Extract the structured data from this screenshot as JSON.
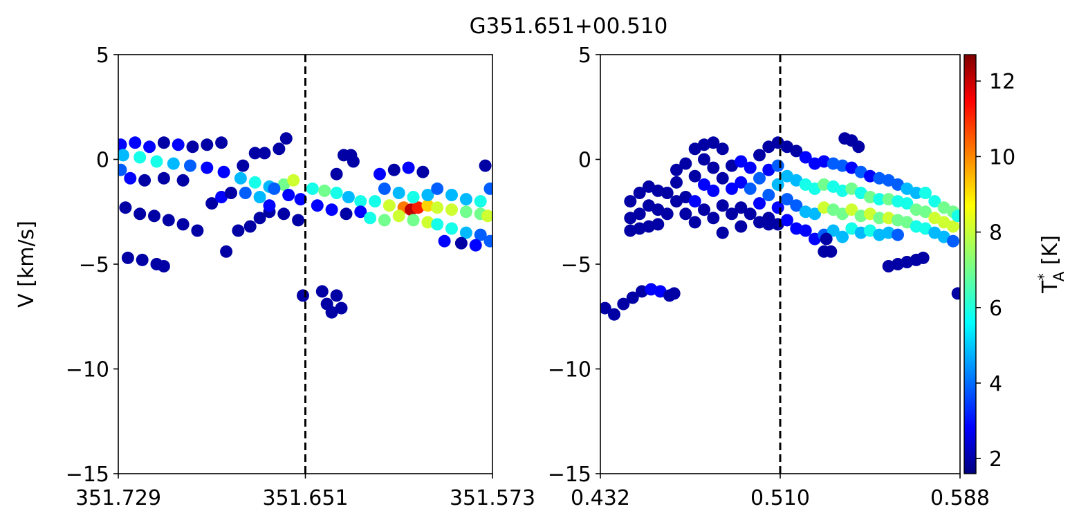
{
  "title": "G351.651+00.510",
  "colorbar": {
    "label_main": "T",
    "label_sup": "*",
    "label_sub": "A",
    "label_unit": " [K]",
    "range": [
      1.6,
      12.7
    ],
    "ticks": [
      2,
      4,
      6,
      8,
      10,
      12
    ],
    "tick_labels": [
      "2",
      "4",
      "6",
      "8",
      "10",
      "12"
    ],
    "colormap": "jet"
  },
  "chart_data": [
    {
      "type": "scatter",
      "panel": "left",
      "xlabel": "",
      "ylabel": "V [km/s]",
      "xlim": [
        351.729,
        351.573
      ],
      "ylim": [
        -15,
        5
      ],
      "xticks": [
        351.729,
        351.651,
        351.573
      ],
      "xtick_labels": [
        "351.729",
        "351.651",
        "351.573"
      ],
      "yticks": [
        5,
        0,
        -5,
        -10,
        -15
      ],
      "ytick_labels": [
        "5",
        "0",
        "−5",
        "−10",
        "−15"
      ],
      "vline": 351.651,
      "vline_style": "dashed",
      "color_scale": "T_A* [K]",
      "points": [
        [
          351.728,
          0.7,
          3
        ],
        [
          351.722,
          0.8,
          3
        ],
        [
          351.716,
          0.6,
          3
        ],
        [
          351.71,
          0.8,
          2
        ],
        [
          351.704,
          0.7,
          3
        ],
        [
          351.698,
          0.6,
          2
        ],
        [
          351.692,
          0.7,
          2
        ],
        [
          351.686,
          0.8,
          2
        ],
        [
          351.727,
          0.2,
          5
        ],
        [
          351.72,
          0.1,
          6
        ],
        [
          351.713,
          -0.1,
          6
        ],
        [
          351.706,
          -0.2,
          5
        ],
        [
          351.699,
          -0.3,
          4
        ],
        [
          351.692,
          -0.4,
          3
        ],
        [
          351.728,
          -0.5,
          4
        ],
        [
          351.724,
          -0.9,
          3
        ],
        [
          351.718,
          -1.0,
          2
        ],
        [
          351.71,
          -0.9,
          2
        ],
        [
          351.702,
          -1.0,
          2
        ],
        [
          351.726,
          -2.3,
          2
        ],
        [
          351.72,
          -2.6,
          2
        ],
        [
          351.714,
          -2.7,
          2
        ],
        [
          351.708,
          -2.9,
          2
        ],
        [
          351.702,
          -3.1,
          2
        ],
        [
          351.696,
          -3.4,
          2
        ],
        [
          351.725,
          -4.7,
          2
        ],
        [
          351.719,
          -4.8,
          2
        ],
        [
          351.713,
          -5.0,
          2
        ],
        [
          351.71,
          -5.1,
          2
        ],
        [
          351.69,
          -2.1,
          2
        ],
        [
          351.686,
          -1.8,
          3
        ],
        [
          351.682,
          -1.6,
          2
        ],
        [
          351.684,
          -4.4,
          2
        ],
        [
          351.679,
          -3.4,
          2
        ],
        [
          351.674,
          -3.2,
          2
        ],
        [
          351.67,
          -2.8,
          2
        ],
        [
          351.666,
          -2.5,
          2
        ],
        [
          351.677,
          -0.3,
          2
        ],
        [
          351.672,
          0.3,
          2
        ],
        [
          351.668,
          0.3,
          2
        ],
        [
          351.662,
          0.5,
          2
        ],
        [
          351.659,
          1.0,
          2
        ],
        [
          351.685,
          -0.6,
          3
        ],
        [
          351.678,
          -0.9,
          5
        ],
        [
          351.672,
          -1.1,
          6
        ],
        [
          351.666,
          -1.3,
          5
        ],
        [
          351.66,
          -1.2,
          7
        ],
        [
          351.656,
          -1.0,
          8
        ],
        [
          351.676,
          -1.6,
          4
        ],
        [
          351.67,
          -1.8,
          5
        ],
        [
          351.664,
          -1.4,
          4
        ],
        [
          351.658,
          -1.7,
          3
        ],
        [
          351.653,
          -1.9,
          3
        ],
        [
          351.666,
          -2.2,
          3
        ],
        [
          351.66,
          -2.6,
          2
        ],
        [
          351.654,
          -2.9,
          2
        ],
        [
          351.652,
          -6.5,
          2
        ],
        [
          351.644,
          -6.3,
          2
        ],
        [
          351.642,
          -6.9,
          2
        ],
        [
          351.64,
          -7.3,
          2
        ],
        [
          351.638,
          -6.5,
          2
        ],
        [
          351.636,
          -7.1,
          2
        ],
        [
          351.648,
          -1.4,
          6
        ],
        [
          351.643,
          -1.5,
          7
        ],
        [
          351.638,
          -1.6,
          6
        ],
        [
          351.633,
          -1.8,
          5
        ],
        [
          351.628,
          -2.0,
          6
        ],
        [
          351.646,
          -2.2,
          3
        ],
        [
          351.64,
          -2.4,
          3
        ],
        [
          351.634,
          -2.6,
          2
        ],
        [
          351.628,
          -2.5,
          3
        ],
        [
          351.638,
          -0.7,
          2
        ],
        [
          351.635,
          0.2,
          2
        ],
        [
          351.632,
          0.2,
          2
        ],
        [
          351.631,
          -0.1,
          2
        ],
        [
          351.622,
          -2.0,
          6
        ],
        [
          351.616,
          -2.2,
          8
        ],
        [
          351.61,
          -2.3,
          10
        ],
        [
          351.607,
          -2.4,
          12
        ],
        [
          351.604,
          -2.3,
          11
        ],
        [
          351.6,
          -2.2,
          9
        ],
        [
          351.624,
          -2.8,
          6
        ],
        [
          351.618,
          -2.9,
          7
        ],
        [
          351.612,
          -2.7,
          8
        ],
        [
          351.606,
          -2.9,
          7
        ],
        [
          351.6,
          -3.0,
          8
        ],
        [
          351.62,
          -0.7,
          3
        ],
        [
          351.614,
          -0.5,
          2
        ],
        [
          351.608,
          -0.4,
          3
        ],
        [
          351.602,
          -0.6,
          2
        ],
        [
          351.618,
          -1.4,
          4
        ],
        [
          351.612,
          -1.6,
          5
        ],
        [
          351.606,
          -1.8,
          6
        ],
        [
          351.6,
          -1.7,
          5
        ],
        [
          351.596,
          -2.3,
          8
        ],
        [
          351.59,
          -2.4,
          8
        ],
        [
          351.584,
          -2.5,
          7
        ],
        [
          351.578,
          -2.6,
          7
        ],
        [
          351.575,
          -2.7,
          8
        ],
        [
          351.596,
          -3.1,
          6
        ],
        [
          351.59,
          -3.3,
          6
        ],
        [
          351.584,
          -3.5,
          5
        ],
        [
          351.578,
          -3.6,
          4
        ],
        [
          351.574,
          -3.9,
          4
        ],
        [
          351.596,
          -1.4,
          4
        ],
        [
          351.59,
          -1.7,
          5
        ],
        [
          351.584,
          -1.9,
          5
        ],
        [
          351.578,
          -2.0,
          6
        ],
        [
          351.574,
          -1.4,
          4
        ],
        [
          351.593,
          -3.9,
          3
        ],
        [
          351.586,
          -4.0,
          2
        ],
        [
          351.58,
          -4.1,
          3
        ],
        [
          351.576,
          -0.3,
          2
        ]
      ]
    },
    {
      "type": "scatter",
      "panel": "right",
      "xlabel": "",
      "ylabel": "",
      "xlim": [
        0.432,
        0.588
      ],
      "ylim": [
        -15,
        5
      ],
      "xticks": [
        0.432,
        0.51,
        0.588
      ],
      "xtick_labels": [
        "0.432",
        "0.510",
        "0.588"
      ],
      "yticks": [
        5,
        0,
        -5,
        -10,
        -15
      ],
      "ytick_labels": [
        "5",
        "0",
        "−5",
        "−10",
        "−15"
      ],
      "vline": 0.51,
      "vline_style": "dashed",
      "color_scale": "T_A* [K]",
      "points": [
        [
          0.434,
          -7.1,
          2
        ],
        [
          0.438,
          -7.4,
          2
        ],
        [
          0.442,
          -6.9,
          2
        ],
        [
          0.446,
          -6.6,
          2
        ],
        [
          0.45,
          -6.3,
          2
        ],
        [
          0.454,
          -6.2,
          3
        ],
        [
          0.458,
          -6.3,
          3
        ],
        [
          0.462,
          -6.5,
          2
        ],
        [
          0.464,
          -6.4,
          2
        ],
        [
          0.445,
          -2.0,
          2
        ],
        [
          0.445,
          -2.8,
          2
        ],
        [
          0.445,
          -3.4,
          2
        ],
        [
          0.449,
          -1.6,
          2
        ],
        [
          0.449,
          -2.6,
          2
        ],
        [
          0.449,
          -3.3,
          2
        ],
        [
          0.453,
          -1.3,
          2
        ],
        [
          0.453,
          -2.2,
          2
        ],
        [
          0.453,
          -3.2,
          2
        ],
        [
          0.457,
          -1.5,
          2
        ],
        [
          0.457,
          -2.4,
          2
        ],
        [
          0.457,
          -3.1,
          2
        ],
        [
          0.461,
          -1.6,
          2
        ],
        [
          0.461,
          -2.6,
          2
        ],
        [
          0.465,
          -1.1,
          2
        ],
        [
          0.465,
          -2.0,
          2
        ],
        [
          0.465,
          -0.5,
          2
        ],
        [
          0.469,
          -0.2,
          2
        ],
        [
          0.469,
          -1.8,
          2
        ],
        [
          0.469,
          -2.6,
          2
        ],
        [
          0.473,
          0.5,
          2
        ],
        [
          0.473,
          -0.8,
          2
        ],
        [
          0.473,
          -2.0,
          3
        ],
        [
          0.473,
          -3.0,
          2
        ],
        [
          0.477,
          0.7,
          2
        ],
        [
          0.477,
          0.0,
          2
        ],
        [
          0.477,
          -1.2,
          3
        ],
        [
          0.477,
          -2.4,
          2
        ],
        [
          0.481,
          0.8,
          2
        ],
        [
          0.481,
          -0.4,
          2
        ],
        [
          0.481,
          -1.5,
          3
        ],
        [
          0.481,
          -2.8,
          2
        ],
        [
          0.485,
          0.5,
          2
        ],
        [
          0.485,
          -0.9,
          2
        ],
        [
          0.485,
          -2.2,
          2
        ],
        [
          0.485,
          -3.5,
          2
        ],
        [
          0.489,
          -0.3,
          2
        ],
        [
          0.489,
          -1.4,
          3
        ],
        [
          0.489,
          -2.6,
          2
        ],
        [
          0.493,
          -0.1,
          3
        ],
        [
          0.493,
          -1.1,
          3
        ],
        [
          0.493,
          -2.3,
          2
        ],
        [
          0.493,
          -3.2,
          2
        ],
        [
          0.497,
          -0.4,
          3
        ],
        [
          0.497,
          -1.4,
          4
        ],
        [
          0.497,
          -2.6,
          2
        ],
        [
          0.501,
          0.2,
          2
        ],
        [
          0.501,
          -0.9,
          4
        ],
        [
          0.501,
          -2.1,
          3
        ],
        [
          0.501,
          -3.0,
          2
        ],
        [
          0.505,
          0.6,
          2
        ],
        [
          0.505,
          -0.5,
          3
        ],
        [
          0.505,
          -1.7,
          4
        ],
        [
          0.505,
          -2.8,
          2
        ],
        [
          0.509,
          0.8,
          2
        ],
        [
          0.509,
          -0.3,
          4
        ],
        [
          0.509,
          -1.2,
          5
        ],
        [
          0.509,
          -2.3,
          3
        ],
        [
          0.509,
          -3.1,
          2
        ],
        [
          0.513,
          0.6,
          2
        ],
        [
          0.513,
          -0.8,
          5
        ],
        [
          0.513,
          -1.9,
          4
        ],
        [
          0.513,
          -2.9,
          3
        ],
        [
          0.517,
          0.4,
          2
        ],
        [
          0.517,
          -1.0,
          5
        ],
        [
          0.517,
          -2.2,
          4
        ],
        [
          0.517,
          -3.3,
          3
        ],
        [
          0.521,
          0.1,
          3
        ],
        [
          0.521,
          -1.2,
          6
        ],
        [
          0.521,
          -2.5,
          5
        ],
        [
          0.521,
          -3.4,
          3
        ],
        [
          0.525,
          -0.2,
          3
        ],
        [
          0.525,
          -1.4,
          6
        ],
        [
          0.525,
          -2.6,
          5
        ],
        [
          0.525,
          -3.8,
          3
        ],
        [
          0.529,
          -0.1,
          3
        ],
        [
          0.529,
          -1.2,
          7
        ],
        [
          0.529,
          -2.3,
          8
        ],
        [
          0.529,
          -3.6,
          4
        ],
        [
          0.529,
          -4.4,
          2
        ],
        [
          0.533,
          -0.2,
          4
        ],
        [
          0.533,
          -1.3,
          6
        ],
        [
          0.533,
          -2.4,
          7
        ],
        [
          0.533,
          -3.4,
          5
        ],
        [
          0.537,
          -0.3,
          4
        ],
        [
          0.537,
          -1.5,
          6
        ],
        [
          0.537,
          -2.6,
          7
        ],
        [
          0.537,
          -3.7,
          5
        ],
        [
          0.541,
          -0.4,
          3
        ],
        [
          0.541,
          -1.4,
          7
        ],
        [
          0.541,
          -2.4,
          8
        ],
        [
          0.541,
          -3.3,
          6
        ],
        [
          0.545,
          -0.6,
          4
        ],
        [
          0.545,
          -1.6,
          6
        ],
        [
          0.545,
          -2.7,
          7
        ],
        [
          0.545,
          -3.5,
          5
        ],
        [
          0.549,
          -0.8,
          3
        ],
        [
          0.549,
          -1.8,
          7
        ],
        [
          0.549,
          -2.6,
          8
        ],
        [
          0.549,
          -3.4,
          6
        ],
        [
          0.553,
          -0.9,
          4
        ],
        [
          0.553,
          -1.9,
          6
        ],
        [
          0.553,
          -2.8,
          7
        ],
        [
          0.553,
          -3.6,
          5
        ],
        [
          0.557,
          -1.0,
          4
        ],
        [
          0.557,
          -1.9,
          7
        ],
        [
          0.557,
          -2.8,
          8
        ],
        [
          0.557,
          -3.5,
          5
        ],
        [
          0.561,
          -1.2,
          4
        ],
        [
          0.561,
          -2.0,
          6
        ],
        [
          0.561,
          -2.9,
          7
        ],
        [
          0.561,
          -3.6,
          4
        ],
        [
          0.565,
          -1.4,
          5
        ],
        [
          0.565,
          -2.1,
          6
        ],
        [
          0.565,
          -3.0,
          7
        ],
        [
          0.569,
          -1.6,
          5
        ],
        [
          0.569,
          -2.4,
          7
        ],
        [
          0.569,
          -3.2,
          6
        ],
        [
          0.573,
          -1.6,
          6
        ],
        [
          0.573,
          -2.5,
          7
        ],
        [
          0.573,
          -3.3,
          6
        ],
        [
          0.577,
          -2.0,
          6
        ],
        [
          0.577,
          -2.8,
          8
        ],
        [
          0.577,
          -3.5,
          5
        ],
        [
          0.581,
          -2.3,
          7
        ],
        [
          0.581,
          -3.0,
          8
        ],
        [
          0.581,
          -3.7,
          5
        ],
        [
          0.585,
          -2.5,
          7
        ],
        [
          0.585,
          -3.2,
          8
        ],
        [
          0.585,
          -3.9,
          4
        ],
        [
          0.587,
          -2.7,
          6
        ],
        [
          0.538,
          1.0,
          2
        ],
        [
          0.541,
          0.9,
          2
        ],
        [
          0.544,
          0.6,
          2
        ],
        [
          0.53,
          -3.8,
          2
        ],
        [
          0.532,
          -4.4,
          2
        ],
        [
          0.557,
          -5.1,
          2
        ],
        [
          0.561,
          -5.0,
          2
        ],
        [
          0.565,
          -4.9,
          2
        ],
        [
          0.569,
          -4.8,
          2
        ],
        [
          0.572,
          -4.7,
          2
        ],
        [
          0.587,
          -6.4,
          2
        ],
        [
          0.505,
          -3.1,
          2
        ]
      ]
    }
  ]
}
